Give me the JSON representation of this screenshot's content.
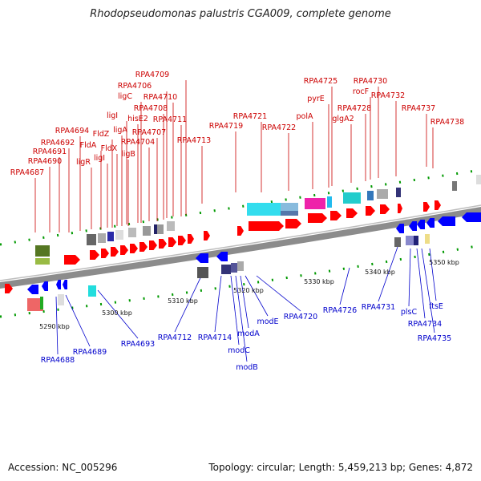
{
  "title": "Rhodopseudomonas palustris CGA009, complete genome",
  "footer": {
    "accession": "Accession: NC_005296",
    "summary": "Topology: circular; Length: 5,459,213 bp; Genes: 4,872"
  },
  "colors": {
    "forward_label": "#cc0000",
    "reverse_label": "#0000cc",
    "backbone": "#8c8c8c",
    "tick": "#009900"
  },
  "kbp_labels": [
    "5290 kbp",
    "5300 kbp",
    "5310 kbp",
    "5320 kbp",
    "5330 kbp",
    "5340 kbp",
    "5350 kbp"
  ],
  "forward_genes": [
    "RPA4687",
    "RPA4690",
    "RPA4691",
    "RPA4692",
    "RPA4694",
    "ligR",
    "FldA",
    "ligI",
    "FldZ",
    "FldX",
    "ligA",
    "ligB",
    "ligI",
    "hisE2",
    "ligC",
    "RPA4704",
    "RPA4707",
    "RPA4708",
    "RPA4706",
    "RPA4710",
    "RPA4711",
    "RPA4709",
    "RPA4713",
    "RPA4719",
    "RPA4721",
    "RPA4722",
    "polA",
    "pyrE",
    "RPA4725",
    "glgA2",
    "RPA4728",
    "rocF",
    "RPA4730",
    "RPA4732",
    "RPA4737",
    "RPA4738"
  ],
  "reverse_genes": [
    "RPA4688",
    "RPA4689",
    "RPA4693",
    "RPA4712",
    "RPA4714",
    "modC",
    "modB",
    "modA",
    "modE",
    "RPA4720",
    "RPA4726",
    "RPA4731",
    "plsC",
    "RPA4734",
    "RPA4735",
    "ftsE"
  ]
}
